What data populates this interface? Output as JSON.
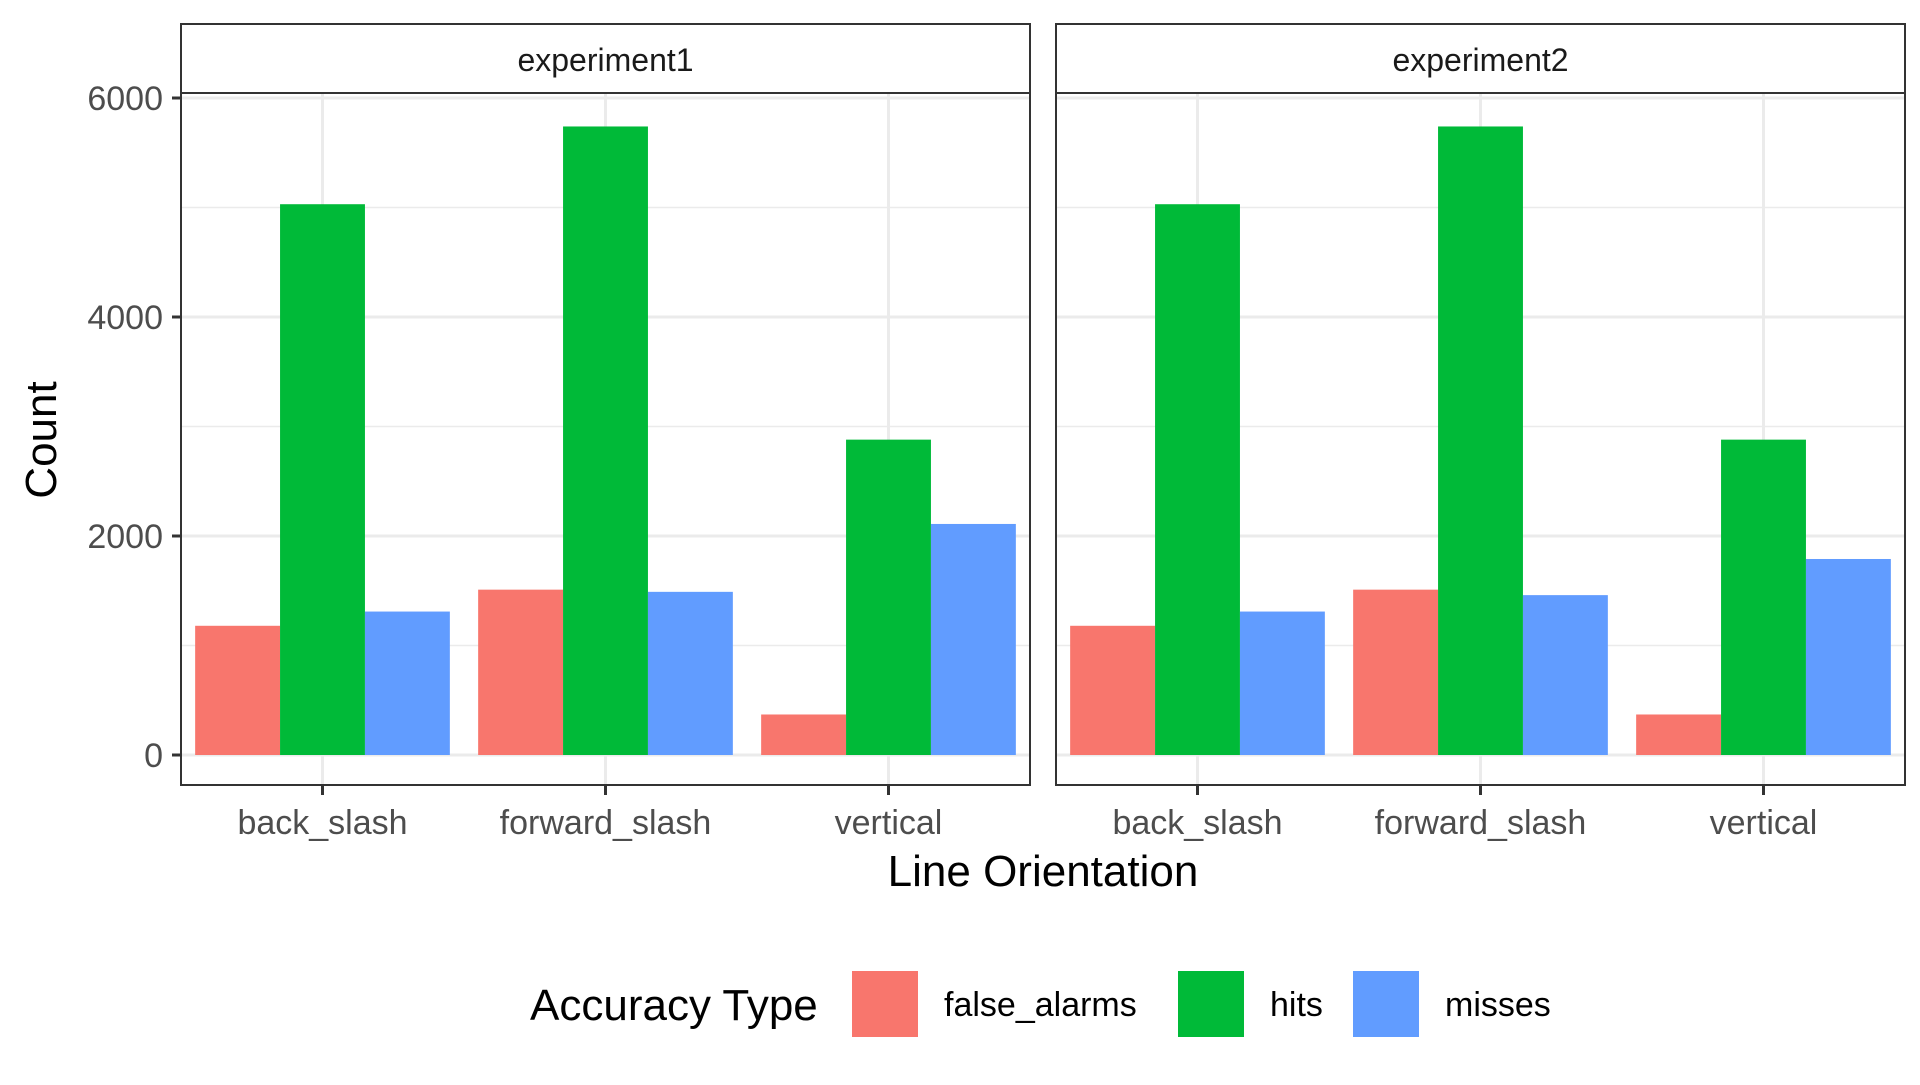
{
  "chart_data": {
    "type": "bar",
    "facets": [
      "experiment1",
      "experiment2"
    ],
    "categories": [
      "back_slash",
      "forward_slash",
      "vertical"
    ],
    "series": [
      {
        "name": "false_alarms",
        "color": "#F8766D"
      },
      {
        "name": "hits",
        "color": "#00BA38"
      },
      {
        "name": "misses",
        "color": "#619CFF"
      }
    ],
    "values": {
      "experiment1": {
        "false_alarms": [
          1180,
          1510,
          370
        ],
        "hits": [
          5030,
          5740,
          2880
        ],
        "misses": [
          1310,
          1490,
          2110
        ]
      },
      "experiment2": {
        "false_alarms": [
          1180,
          1510,
          370
        ],
        "hits": [
          5030,
          5740,
          2880
        ],
        "misses": [
          1310,
          1460,
          1790
        ]
      }
    },
    "xlabel": "Line Orientation",
    "ylabel": "Count",
    "ylim": [
      -280,
      6000
    ],
    "y_ticks": [
      0,
      2000,
      4000,
      6000
    ],
    "y_tick_labels": [
      "0",
      "2000",
      "4000",
      "6000"
    ],
    "y_minor_ticks": [
      1000,
      3000,
      5000
    ],
    "grid": true,
    "legend": {
      "title": "Accuracy Type",
      "position": "bottom",
      "items": [
        "false_alarms",
        "hits",
        "misses"
      ]
    }
  }
}
